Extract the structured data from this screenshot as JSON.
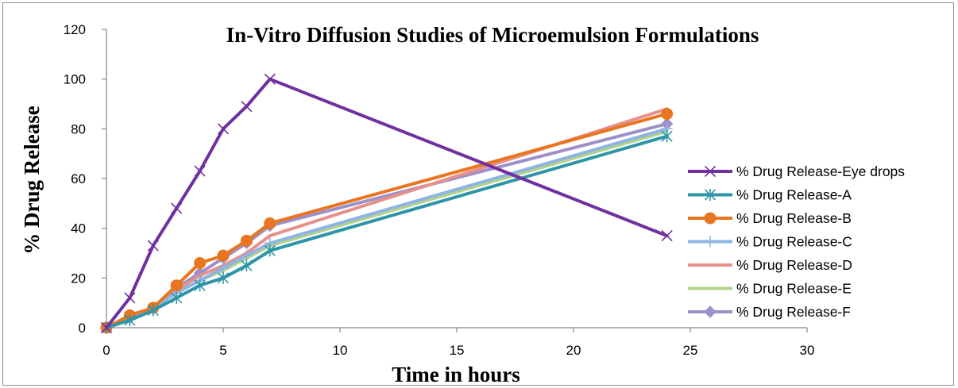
{
  "chart_data": {
    "type": "line",
    "title": "In-Vitro Diffusion Studies of Microemulsion Formulations",
    "xlabel": "Time in hours",
    "ylabel": "% Drug Release",
    "xlim": [
      0,
      30
    ],
    "ylim": [
      0,
      120
    ],
    "x_ticks": [
      0,
      5,
      10,
      15,
      20,
      25,
      30
    ],
    "y_ticks": [
      0,
      20,
      40,
      60,
      80,
      100,
      120
    ],
    "grid": false,
    "legend_position": "right",
    "x": [
      0,
      1,
      2,
      3,
      4,
      5,
      6,
      7,
      24
    ],
    "series": [
      {
        "name": "% Drug Release-Eye drops",
        "values": [
          0,
          12,
          33,
          48,
          63,
          80,
          89,
          100,
          37
        ],
        "color": "#7030a0",
        "marker": "x"
      },
      {
        "name": "% Drug Release-A",
        "values": [
          0,
          3,
          7,
          12,
          17,
          20,
          25,
          31,
          77
        ],
        "color": "#2e95a8",
        "marker": "asterisk"
      },
      {
        "name": "% Drug Release-B",
        "values": [
          0,
          5,
          8,
          17,
          26,
          29,
          35,
          42,
          86
        ],
        "color": "#e8751f",
        "marker": "circle"
      },
      {
        "name": "% Drug Release-C",
        "values": [
          0,
          4,
          8,
          14,
          19,
          24,
          29,
          34,
          80
        ],
        "color": "#8eb4e3",
        "marker": "plus"
      },
      {
        "name": "% Drug Release-D",
        "values": [
          0,
          4,
          8,
          15,
          21,
          25,
          30,
          37,
          88
        ],
        "color": "#e6908c",
        "marker": "none"
      },
      {
        "name": "% Drug Release-E",
        "values": [
          0,
          4,
          8,
          14,
          19,
          23,
          28,
          33,
          79
        ],
        "color": "#b3d38a",
        "marker": "none"
      },
      {
        "name": "% Drug Release-F",
        "values": [
          0,
          4,
          8,
          16,
          22,
          28,
          34,
          41,
          82
        ],
        "color": "#9d8fc9",
        "marker": "diamond"
      }
    ]
  }
}
